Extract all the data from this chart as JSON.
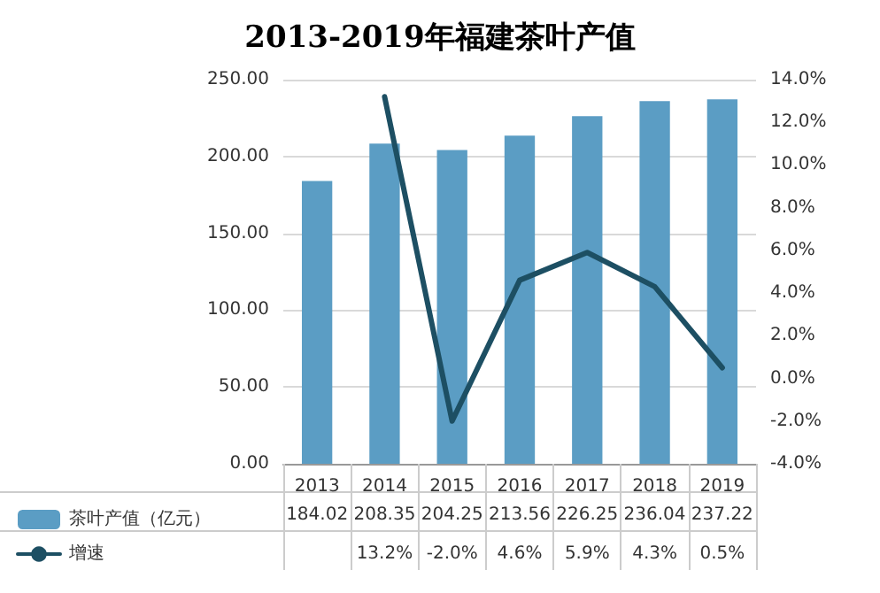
{
  "chart_data": {
    "type": "bar",
    "title": "2013-2019年福建茶叶产值",
    "categories": [
      "2013",
      "2014",
      "2015",
      "2016",
      "2017",
      "2018",
      "2019"
    ],
    "series": [
      {
        "name": "茶叶产值（亿元）",
        "color": "#5b9dc4",
        "values": [
          184.02,
          208.35,
          204.25,
          213.56,
          226.25,
          236.04,
          237.22
        ],
        "value_labels": [
          "184.02",
          "208.35",
          "204.25",
          "213.56",
          "226.25",
          "236.04",
          "237.22"
        ]
      },
      {
        "name": "增速",
        "type": "line",
        "axis": "y2",
        "color": "#1d4f63",
        "values": [
          null,
          13.2,
          -2.0,
          4.6,
          5.9,
          4.3,
          0.5
        ],
        "value_labels": [
          null,
          "13.2%",
          "-2.0%",
          "4.6%",
          "5.9%",
          "4.3%",
          "0.5%"
        ]
      }
    ],
    "ylim": [
      0,
      250
    ],
    "yticks": [
      {
        "value": 0,
        "label": "0.00"
      },
      {
        "value": 50,
        "label": "50.00"
      },
      {
        "value": 100,
        "label": "100.00"
      },
      {
        "value": 150,
        "label": "150.00"
      },
      {
        "value": 200,
        "label": "200.00"
      },
      {
        "value": 250,
        "label": "250.00"
      }
    ],
    "y2lim": [
      -4,
      14
    ],
    "y2ticks": [
      {
        "value": -4,
        "label": "-4.0%"
      },
      {
        "value": -2,
        "label": "-2.0%"
      },
      {
        "value": 0,
        "label": "0.0%"
      },
      {
        "value": 2,
        "label": "2.0%"
      },
      {
        "value": 4,
        "label": "4.0%"
      },
      {
        "value": 6,
        "label": "6.0%"
      },
      {
        "value": 8,
        "label": "8.0%"
      },
      {
        "value": 10,
        "label": "10.0%"
      },
      {
        "value": 12,
        "label": "12.0%"
      },
      {
        "value": 14,
        "label": "14.0%"
      }
    ],
    "grid": "y",
    "legend": "bottom",
    "marker": "none"
  }
}
